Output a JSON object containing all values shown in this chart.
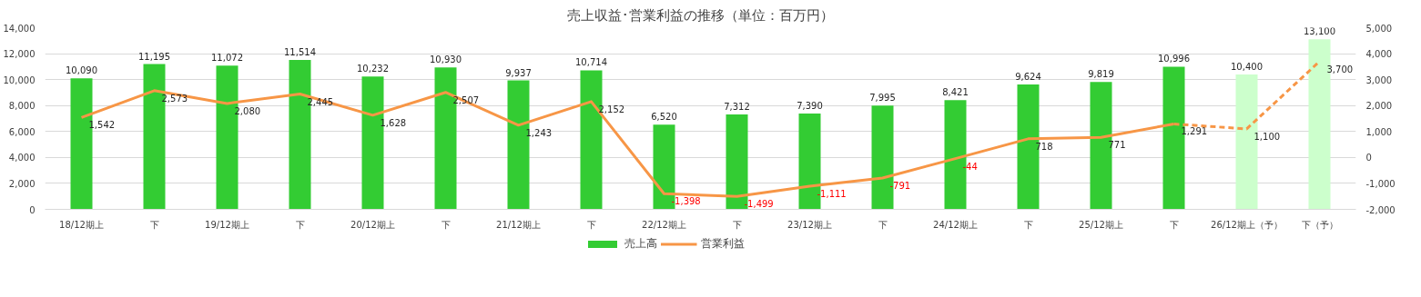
{
  "chart_data": {
    "type": "bar",
    "title": "売上収益･営業利益の推移（単位：百万円）",
    "categories": [
      "18/12期上",
      "下",
      "19/12期上",
      "下",
      "20/12期上",
      "下",
      "21/12期上",
      "下",
      "22/12期上",
      "下",
      "23/12期上",
      "下",
      "24/12期上",
      "下",
      "25/12期上",
      "下",
      "26/12期上（予）",
      "下（予）"
    ],
    "series": [
      {
        "name": "売上高",
        "color": "#33cc33",
        "colors": [
          "#33cc33",
          "#33cc33",
          "#33cc33",
          "#33cc33",
          "#33cc33",
          "#33cc33",
          "#33cc33",
          "#33cc33",
          "#33cc33",
          "#33cc33",
          "#33cc33",
          "#33cc33",
          "#33cc33",
          "#33cc33",
          "#33cc33",
          "#33cc33",
          "#ccffcc",
          "#ccffcc"
        ],
        "values": [
          10090,
          11195,
          11072,
          11514,
          10232,
          10930,
          9937,
          10714,
          6520,
          7312,
          7390,
          7995,
          8421,
          9624,
          9819,
          10996,
          10400,
          13100
        ],
        "value_labels": [
          "10,090",
          "11,195",
          "11,072",
          "11,514",
          "10,232",
          "10,930",
          "9,937",
          "10,714",
          "6,520",
          "7,312",
          "7,390",
          "7,995",
          "8,421",
          "9,624",
          "9,819",
          "10,996",
          "10,400",
          "13,100"
        ]
      },
      {
        "name": "営業利益",
        "type": "line",
        "axis": "y2",
        "color": "#f79646",
        "line_style": "solid",
        "values": [
          1542,
          2573,
          2080,
          2445,
          1628,
          2507,
          1243,
          2152,
          -1398,
          -1499,
          -1111,
          -791,
          -44,
          718,
          771,
          1291,
          null,
          null
        ],
        "value_labels": [
          "1,542",
          "2,573",
          "2,080",
          "2,445",
          "1,628",
          "2,507",
          "1,243",
          "2,152",
          "-1,398",
          "-1,499",
          "-1,111",
          "-791",
          "-44",
          "718",
          "771",
          "1,291",
          null,
          null
        ]
      },
      {
        "type": "line",
        "axis": "y2",
        "color": "#f79646",
        "line_style": "dashed",
        "values": [
          null,
          null,
          null,
          null,
          null,
          null,
          null,
          null,
          null,
          null,
          null,
          null,
          null,
          null,
          null,
          1291,
          1100,
          3700
        ],
        "value_labels": [
          null,
          null,
          null,
          null,
          null,
          null,
          null,
          null,
          null,
          null,
          null,
          null,
          null,
          null,
          null,
          null,
          "1,100",
          "3,700"
        ]
      }
    ],
    "ylim": [
      0,
      14000
    ],
    "yticks": [
      0,
      {
        "value": 2000,
        "label": "2,000"
      },
      {
        "value": 4000,
        "label": "4,000"
      },
      {
        "value": 6000,
        "label": "6,000"
      },
      {
        "value": 8000,
        "label": "8,000"
      },
      {
        "value": 10000,
        "label": "10,000"
      },
      {
        "value": 12000,
        "label": "12,000"
      },
      {
        "value": 14000,
        "label": "14,000"
      }
    ],
    "y2lim": [
      -2000,
      5000
    ],
    "y2ticks": [
      {
        "value": -2000,
        "label": "-2,000"
      },
      {
        "value": -1000,
        "label": "-1,000"
      },
      0,
      {
        "value": 1000,
        "label": "1,000"
      },
      {
        "value": 2000,
        "label": "2,000"
      },
      {
        "value": 3000,
        "label": "3,000"
      },
      {
        "value": 4000,
        "label": "4,000"
      },
      {
        "value": 5000,
        "label": "5,000"
      }
    ],
    "grid": "y",
    "legend": "bottom"
  }
}
